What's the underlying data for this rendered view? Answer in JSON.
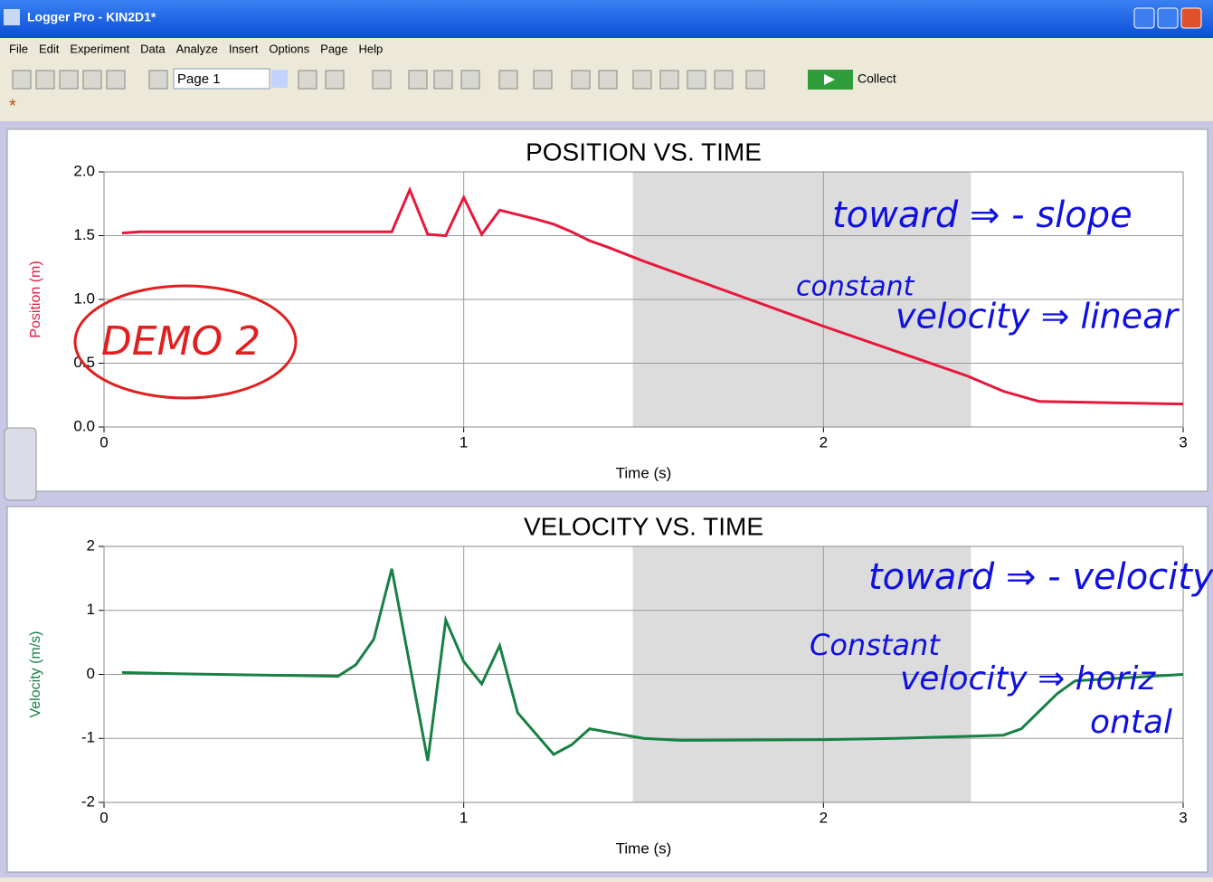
{
  "window": {
    "title": "Logger Pro - KIN2D1*"
  },
  "menu": [
    "File",
    "Edit",
    "Experiment",
    "Data",
    "Analyze",
    "Insert",
    "Options",
    "Page",
    "Help"
  ],
  "toolbar": {
    "page": "Page 1",
    "collect": "Collect"
  },
  "chart_data": [
    {
      "type": "line",
      "title": "POSITION VS. TIME",
      "xlabel": "Time (s)",
      "ylabel": "Position (m)",
      "color": "#e8173c",
      "grid": true,
      "shaded_x": [
        1.47,
        2.41
      ],
      "x": [
        0.05,
        0.1,
        0.8,
        0.85,
        0.9,
        0.95,
        1.0,
        1.05,
        1.1,
        1.2,
        1.25,
        1.3,
        1.35,
        1.4,
        1.5,
        2.0,
        2.4,
        2.5,
        2.6,
        3.0
      ],
      "values": [
        1.52,
        1.53,
        1.53,
        1.86,
        1.51,
        1.5,
        1.8,
        1.51,
        1.7,
        1.63,
        1.59,
        1.53,
        1.46,
        1.41,
        1.3,
        0.79,
        0.4,
        0.28,
        0.2,
        0.18
      ],
      "xlim": [
        0,
        3
      ],
      "xticks": [
        0,
        1,
        2,
        3
      ],
      "ylim": [
        0,
        2
      ],
      "yticks": [
        {
          "value": 0,
          "label": "0.0"
        },
        {
          "value": 0.5,
          "label": "0.5"
        },
        {
          "value": 1,
          "label": "1.0"
        },
        {
          "value": 1.5,
          "label": "1.5"
        },
        {
          "value": 2,
          "label": "2.0"
        }
      ],
      "annotations": [
        "toward ⇒ - slope",
        "constant",
        "velocity ⇒ linear",
        "DEMO 2"
      ]
    },
    {
      "type": "line",
      "title": "VELOCITY VS. TIME",
      "xlabel": "Time (s)",
      "ylabel": "Velocity (m/s)",
      "color": "#178042",
      "grid": true,
      "shaded_x": [
        1.47,
        2.41
      ],
      "x": [
        0.05,
        0.2,
        0.55,
        0.65,
        0.7,
        0.75,
        0.8,
        0.9,
        0.95,
        1.0,
        1.05,
        1.1,
        1.15,
        1.25,
        1.3,
        1.35,
        1.4,
        1.5,
        1.6,
        2.0,
        2.2,
        2.5,
        2.55,
        2.65,
        2.7,
        3.0
      ],
      "values": [
        0.03,
        0.01,
        -0.02,
        -0.03,
        0.15,
        0.55,
        1.65,
        -1.35,
        0.85,
        0.2,
        -0.15,
        0.45,
        -0.6,
        -1.25,
        -1.1,
        -0.85,
        -0.9,
        -1.0,
        -1.03,
        -1.02,
        -1.0,
        -0.95,
        -0.85,
        -0.3,
        -0.1,
        0.0
      ],
      "xlim": [
        0,
        3
      ],
      "xticks": [
        0,
        1,
        2,
        3
      ],
      "ylim": [
        -2,
        2
      ],
      "yticks": [
        -2,
        -1,
        0,
        1,
        2
      ],
      "annotations": [
        "toward ⇒ - velocity",
        "Constant",
        "velocity ⇒ horiz",
        "ontal"
      ]
    }
  ]
}
